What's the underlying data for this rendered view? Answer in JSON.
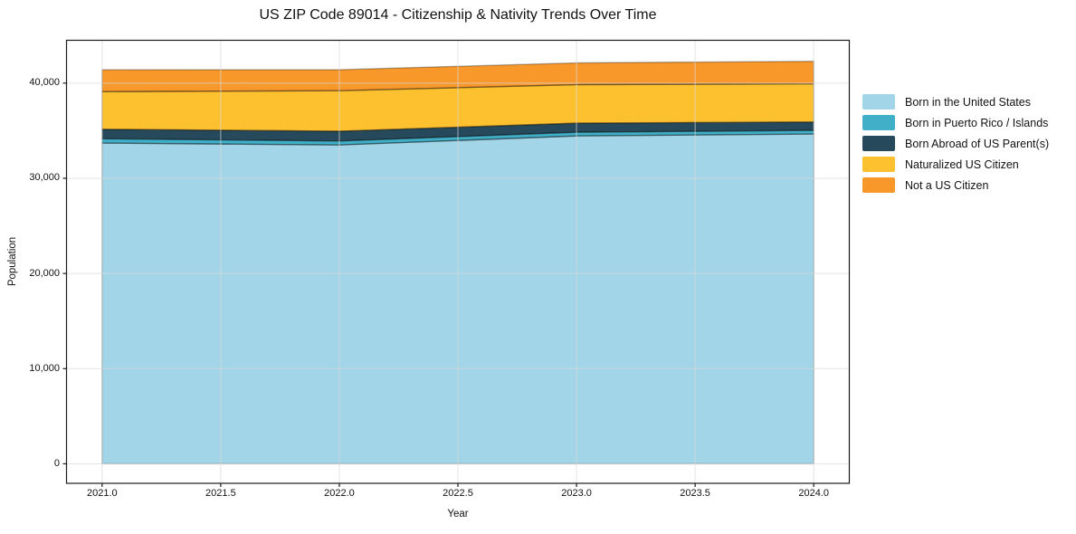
{
  "title": "US ZIP Code 89014 - Citizenship & Nativity Trends Over Time",
  "axes": {
    "x": {
      "label": "Year",
      "tick_labels": [
        "2021.0",
        "2021.5",
        "2022.0",
        "2022.5",
        "2023.0",
        "2023.5",
        "2024.0"
      ],
      "tick_values": [
        2021,
        2021.5,
        2022,
        2022.5,
        2023,
        2023.5,
        2024
      ]
    },
    "y": {
      "label": "Population",
      "tick_labels": [
        "0",
        "10,000",
        "20,000",
        "30,000",
        "40,000"
      ],
      "tick_values": [
        0,
        10000,
        20000,
        30000,
        40000
      ]
    }
  },
  "chart_data": {
    "type": "area",
    "stacked": true,
    "title": "US ZIP Code 89014 - Citizenship & Nativity Trends Over Time",
    "xlabel": "Year",
    "ylabel": "Population",
    "x": [
      2021,
      2022,
      2023,
      2024
    ],
    "series": [
      {
        "name": "Born in the United States",
        "color": "#A3D5E8",
        "values": [
          33700,
          33500,
          34450,
          34650
        ]
      },
      {
        "name": "Born in Puerto Rico / Islands",
        "color": "#41AFC7",
        "values": [
          450,
          420,
          390,
          380
        ]
      },
      {
        "name": "Born Abroad of US Parent(s)",
        "color": "#264A5C",
        "values": [
          1000,
          1020,
          950,
          880
        ]
      },
      {
        "name": "Naturalized US Citizen",
        "color": "#FDC02F",
        "values": [
          3950,
          4260,
          4050,
          4010
        ]
      },
      {
        "name": "Not a US Citizen",
        "color": "#F8982B",
        "values": [
          2300,
          2210,
          2280,
          2370
        ]
      }
    ],
    "xlim": [
      2020.85,
      2024.15
    ],
    "ylim": [
      -2050,
      44500
    ],
    "grid": true,
    "grid_color": "#d9d9d9",
    "edge_stroke": "rgba(0,0,0,0.30)",
    "spine_color": "#1a1a1a",
    "legend_position": "right"
  }
}
